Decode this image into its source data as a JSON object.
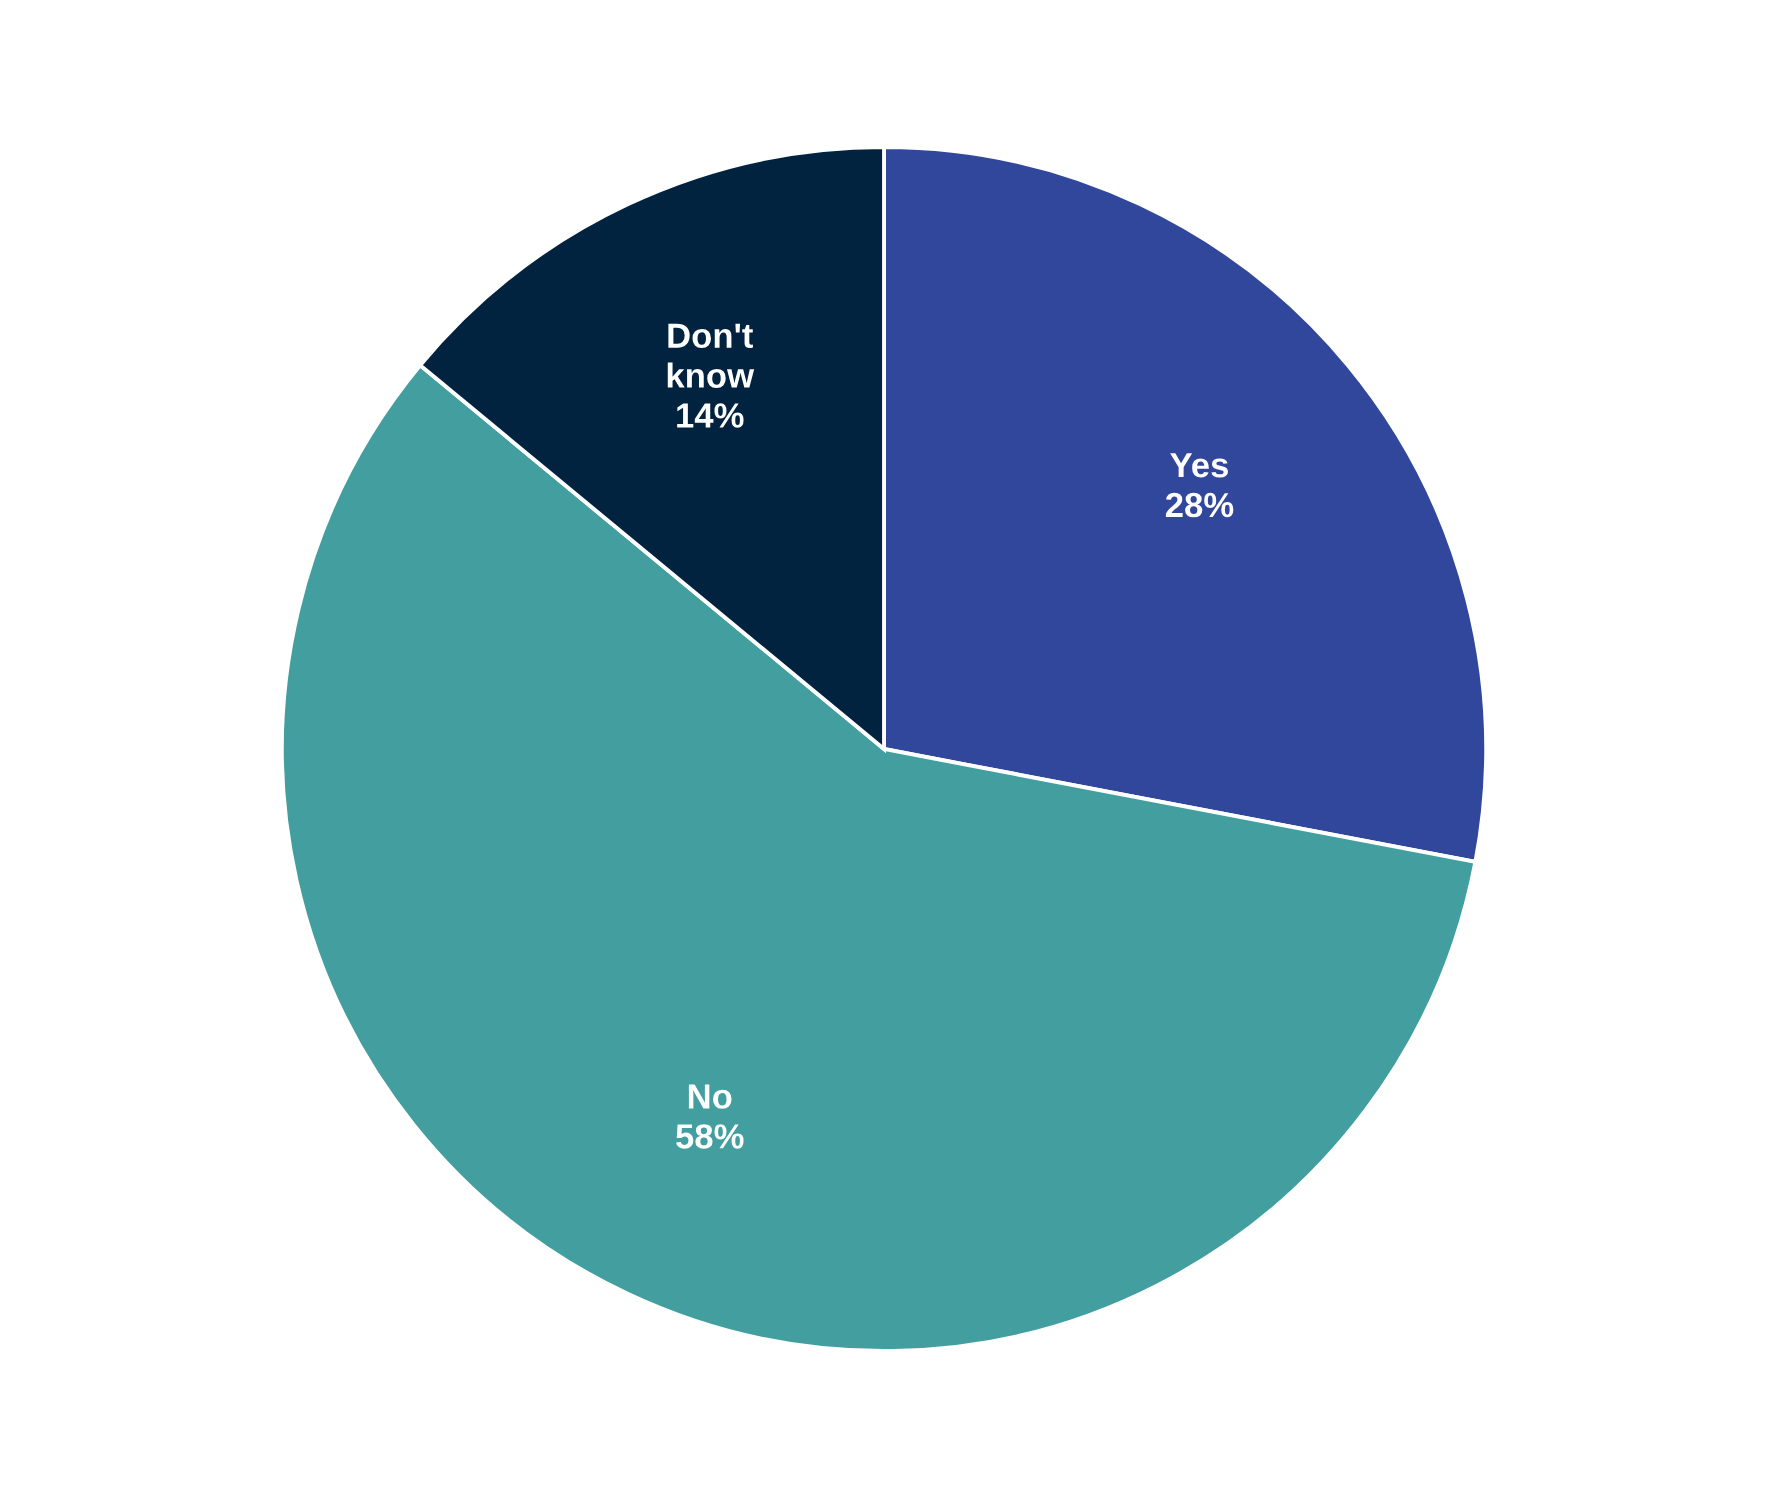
{
  "chart_data": {
    "type": "pie",
    "categories": [
      "Yes",
      "No",
      "Don't know"
    ],
    "values": [
      28,
      58,
      14
    ],
    "value_labels": [
      "28%",
      "58%",
      "14%"
    ],
    "colors": [
      "#31479b",
      "#439f9f",
      "#012340"
    ],
    "legend": false
  }
}
